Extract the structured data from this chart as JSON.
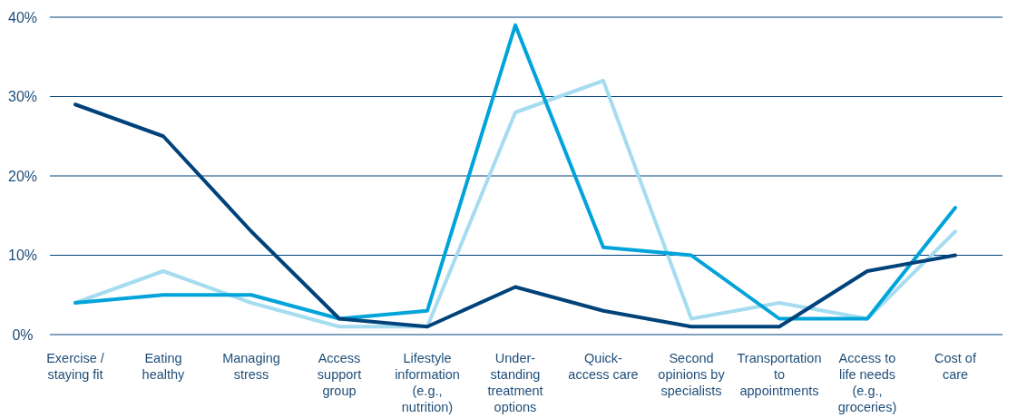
{
  "chart_data": {
    "type": "line",
    "categories": [
      "Exercise / staying fit",
      "Eating healthy",
      "Managing stress",
      "Access support group",
      "Lifestyle information (e.g., nutrition)",
      "Under-standing treatment options",
      "Quick-access care",
      "Second opinions by specialists",
      "Transportation to appointments",
      "Access to life needs (e.g., groceries)",
      "Cost of care"
    ],
    "series": [
      {
        "color": "#a6dcf0",
        "values": [
          4,
          8,
          4,
          1,
          1,
          28,
          32,
          2,
          4,
          2,
          13
        ]
      },
      {
        "color": "#00a3da",
        "values": [
          4,
          5,
          5,
          2,
          3,
          39,
          11,
          10,
          2,
          2,
          16
        ]
      },
      {
        "color": "#00427a",
        "values": [
          29,
          25,
          13,
          2,
          1,
          6,
          3,
          1,
          1,
          8,
          10
        ]
      }
    ],
    "ylim": [
      0,
      40
    ],
    "yticks": [
      {
        "value": 0,
        "label": "0%"
      },
      {
        "value": 10,
        "label": "10%"
      },
      {
        "value": 20,
        "label": "20%"
      },
      {
        "value": 30,
        "label": "30%"
      },
      {
        "value": 40,
        "label": "40%"
      }
    ],
    "grid": "y",
    "marker": "none",
    "line_style": "solid"
  }
}
